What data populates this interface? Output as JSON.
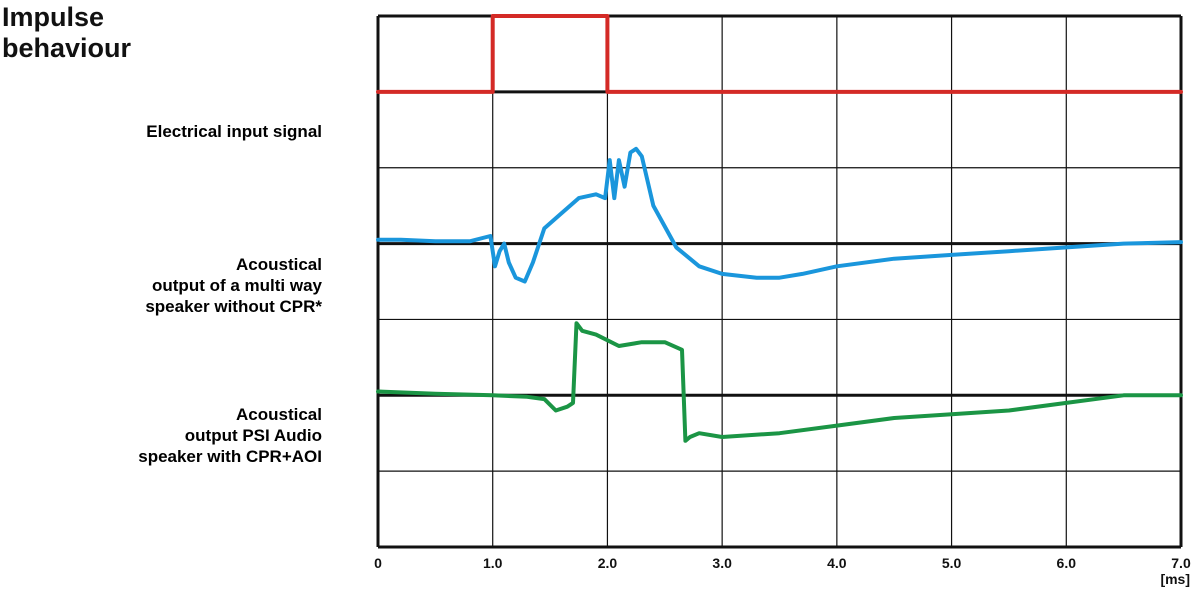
{
  "title": "Impulse\nbehaviour",
  "chart_data": {
    "type": "line",
    "title": "Impulse behaviour",
    "xlabel": "[ms]",
    "ylabel": "",
    "xlim": [
      0,
      7.0
    ],
    "x_ticks": [
      "0",
      "1.0",
      "2.0",
      "3.0",
      "4.0",
      "5.0",
      "6.0",
      "7.0"
    ],
    "grid": true,
    "ylim": [
      -1,
      6
    ],
    "series": [
      {
        "name": "Electrical input signal",
        "color": "#d42a26",
        "x": [
          0,
          1.0,
          1.0,
          2.0,
          2.0,
          7.0
        ],
        "y": [
          5,
          5,
          6,
          6,
          5,
          5
        ]
      },
      {
        "name": "Acoustical\noutput of a multi way\nspeaker without CPR*",
        "color": "#1a96dc",
        "x": [
          0,
          0.2,
          0.5,
          0.8,
          0.98,
          1.02,
          1.06,
          1.1,
          1.14,
          1.2,
          1.28,
          1.35,
          1.45,
          1.6,
          1.75,
          1.9,
          1.98,
          2.02,
          2.06,
          2.1,
          2.15,
          2.2,
          2.25,
          2.3,
          2.4,
          2.6,
          2.8,
          3.0,
          3.3,
          3.5,
          3.7,
          4.0,
          4.5,
          5.0,
          5.5,
          6.0,
          6.5,
          7.0
        ],
        "y": [
          3.05,
          3.05,
          3.03,
          3.03,
          3.1,
          2.7,
          2.9,
          3.0,
          2.75,
          2.55,
          2.5,
          2.75,
          3.2,
          3.4,
          3.6,
          3.65,
          3.6,
          4.1,
          3.6,
          4.1,
          3.75,
          4.2,
          4.25,
          4.15,
          3.5,
          2.95,
          2.7,
          2.6,
          2.55,
          2.55,
          2.6,
          2.7,
          2.8,
          2.85,
          2.9,
          2.95,
          3.0,
          3.02
        ]
      },
      {
        "name": "Acoustical\noutput PSI Audio\nspeaker with CPR+AOI",
        "color": "#1b9545",
        "x": [
          0,
          0.5,
          1.0,
          1.3,
          1.45,
          1.55,
          1.65,
          1.7,
          1.73,
          1.78,
          1.9,
          2.1,
          2.3,
          2.5,
          2.65,
          2.68,
          2.72,
          2.8,
          3.0,
          3.5,
          4.0,
          4.5,
          5.0,
          5.5,
          6.0,
          6.5,
          7.0
        ],
        "y": [
          1.05,
          1.02,
          1.0,
          0.98,
          0.95,
          0.8,
          0.85,
          0.9,
          1.95,
          1.85,
          1.8,
          1.65,
          1.7,
          1.7,
          1.6,
          0.4,
          0.45,
          0.5,
          0.45,
          0.5,
          0.6,
          0.7,
          0.75,
          0.8,
          0.9,
          1.0,
          1.0
        ]
      }
    ]
  }
}
